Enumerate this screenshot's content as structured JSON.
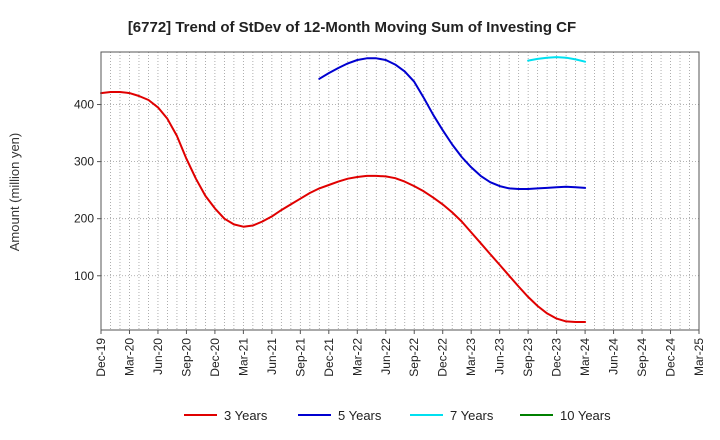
{
  "chart_data": {
    "type": "line",
    "title": "[6772]  Trend of StDev of 12-Month Moving Sum of Investing CF",
    "ylabel": "Amount (million yen)",
    "xlabel": "",
    "ylim": [
      5,
      492
    ],
    "yticks": [
      100,
      200,
      300,
      400
    ],
    "x_ticks": [
      "Dec-19",
      "Mar-20",
      "Jun-20",
      "Sep-20",
      "Dec-20",
      "Mar-21",
      "Jun-21",
      "Sep-21",
      "Dec-21",
      "Mar-22",
      "Jun-22",
      "Sep-22",
      "Dec-22",
      "Mar-23",
      "Jun-23",
      "Sep-23",
      "Dec-23",
      "Mar-24",
      "Jun-24",
      "Sep-24",
      "Dec-24",
      "Mar-25"
    ],
    "grid": "vertical-dotted",
    "legend_position": "bottom",
    "series": [
      {
        "name": "3 Years",
        "color": "#e00000",
        "values": [
          {
            "x": "Dec-19",
            "y": 420
          },
          {
            "x": "Jan-20",
            "y": 422
          },
          {
            "x": "Feb-20",
            "y": 422
          },
          {
            "x": "Mar-20",
            "y": 420
          },
          {
            "x": "Apr-20",
            "y": 415
          },
          {
            "x": "May-20",
            "y": 408
          },
          {
            "x": "Jun-20",
            "y": 395
          },
          {
            "x": "Jul-20",
            "y": 375
          },
          {
            "x": "Aug-20",
            "y": 345
          },
          {
            "x": "Sep-20",
            "y": 305
          },
          {
            "x": "Oct-20",
            "y": 270
          },
          {
            "x": "Nov-20",
            "y": 240
          },
          {
            "x": "Dec-20",
            "y": 218
          },
          {
            "x": "Jan-21",
            "y": 200
          },
          {
            "x": "Feb-21",
            "y": 190
          },
          {
            "x": "Mar-21",
            "y": 186
          },
          {
            "x": "Apr-21",
            "y": 188
          },
          {
            "x": "May-21",
            "y": 195
          },
          {
            "x": "Jun-21",
            "y": 204
          },
          {
            "x": "Jul-21",
            "y": 215
          },
          {
            "x": "Aug-21",
            "y": 225
          },
          {
            "x": "Sep-21",
            "y": 235
          },
          {
            "x": "Oct-21",
            "y": 245
          },
          {
            "x": "Nov-21",
            "y": 253
          },
          {
            "x": "Dec-21",
            "y": 259
          },
          {
            "x": "Jan-22",
            "y": 265
          },
          {
            "x": "Feb-22",
            "y": 270
          },
          {
            "x": "Mar-22",
            "y": 273
          },
          {
            "x": "Apr-22",
            "y": 275
          },
          {
            "x": "May-22",
            "y": 275
          },
          {
            "x": "Jun-22",
            "y": 274
          },
          {
            "x": "Jul-22",
            "y": 271
          },
          {
            "x": "Aug-22",
            "y": 265
          },
          {
            "x": "Sep-22",
            "y": 257
          },
          {
            "x": "Oct-22",
            "y": 248
          },
          {
            "x": "Nov-22",
            "y": 237
          },
          {
            "x": "Dec-22",
            "y": 225
          },
          {
            "x": "Jan-23",
            "y": 211
          },
          {
            "x": "Feb-23",
            "y": 195
          },
          {
            "x": "Mar-23",
            "y": 176
          },
          {
            "x": "Apr-23",
            "y": 157
          },
          {
            "x": "May-23",
            "y": 138
          },
          {
            "x": "Jun-23",
            "y": 119
          },
          {
            "x": "Jul-23",
            "y": 100
          },
          {
            "x": "Aug-23",
            "y": 81
          },
          {
            "x": "Sep-23",
            "y": 63
          },
          {
            "x": "Oct-23",
            "y": 47
          },
          {
            "x": "Nov-23",
            "y": 34
          },
          {
            "x": "Dec-23",
            "y": 25
          },
          {
            "x": "Jan-24",
            "y": 20
          },
          {
            "x": "Feb-24",
            "y": 19
          },
          {
            "x": "Mar-24",
            "y": 19
          }
        ]
      },
      {
        "name": "5 Years",
        "color": "#0000d0",
        "values": [
          {
            "x": "Nov-21",
            "y": 445
          },
          {
            "x": "Dec-21",
            "y": 455
          },
          {
            "x": "Jan-22",
            "y": 464
          },
          {
            "x": "Feb-22",
            "y": 472
          },
          {
            "x": "Mar-22",
            "y": 478
          },
          {
            "x": "Apr-22",
            "y": 481
          },
          {
            "x": "May-22",
            "y": 481
          },
          {
            "x": "Jun-22",
            "y": 478
          },
          {
            "x": "Jul-22",
            "y": 470
          },
          {
            "x": "Aug-22",
            "y": 458
          },
          {
            "x": "Sep-22",
            "y": 440
          },
          {
            "x": "Oct-22",
            "y": 412
          },
          {
            "x": "Nov-22",
            "y": 382
          },
          {
            "x": "Dec-22",
            "y": 355
          },
          {
            "x": "Jan-23",
            "y": 330
          },
          {
            "x": "Feb-23",
            "y": 308
          },
          {
            "x": "Mar-23",
            "y": 290
          },
          {
            "x": "Apr-23",
            "y": 275
          },
          {
            "x": "May-23",
            "y": 264
          },
          {
            "x": "Jun-23",
            "y": 257
          },
          {
            "x": "Jul-23",
            "y": 253
          },
          {
            "x": "Aug-23",
            "y": 252
          },
          {
            "x": "Sep-23",
            "y": 252
          },
          {
            "x": "Oct-23",
            "y": 253
          },
          {
            "x": "Nov-23",
            "y": 254
          },
          {
            "x": "Dec-23",
            "y": 255
          },
          {
            "x": "Jan-24",
            "y": 256
          },
          {
            "x": "Feb-24",
            "y": 255
          },
          {
            "x": "Mar-24",
            "y": 254
          }
        ]
      },
      {
        "name": "7 Years",
        "color": "#00e0f0",
        "values": [
          {
            "x": "Sep-23",
            "y": 477
          },
          {
            "x": "Oct-23",
            "y": 480
          },
          {
            "x": "Nov-23",
            "y": 482
          },
          {
            "x": "Dec-23",
            "y": 483
          },
          {
            "x": "Jan-24",
            "y": 482
          },
          {
            "x": "Feb-24",
            "y": 479
          },
          {
            "x": "Mar-24",
            "y": 475
          }
        ]
      },
      {
        "name": "10 Years",
        "color": "#008000",
        "values": []
      }
    ]
  }
}
